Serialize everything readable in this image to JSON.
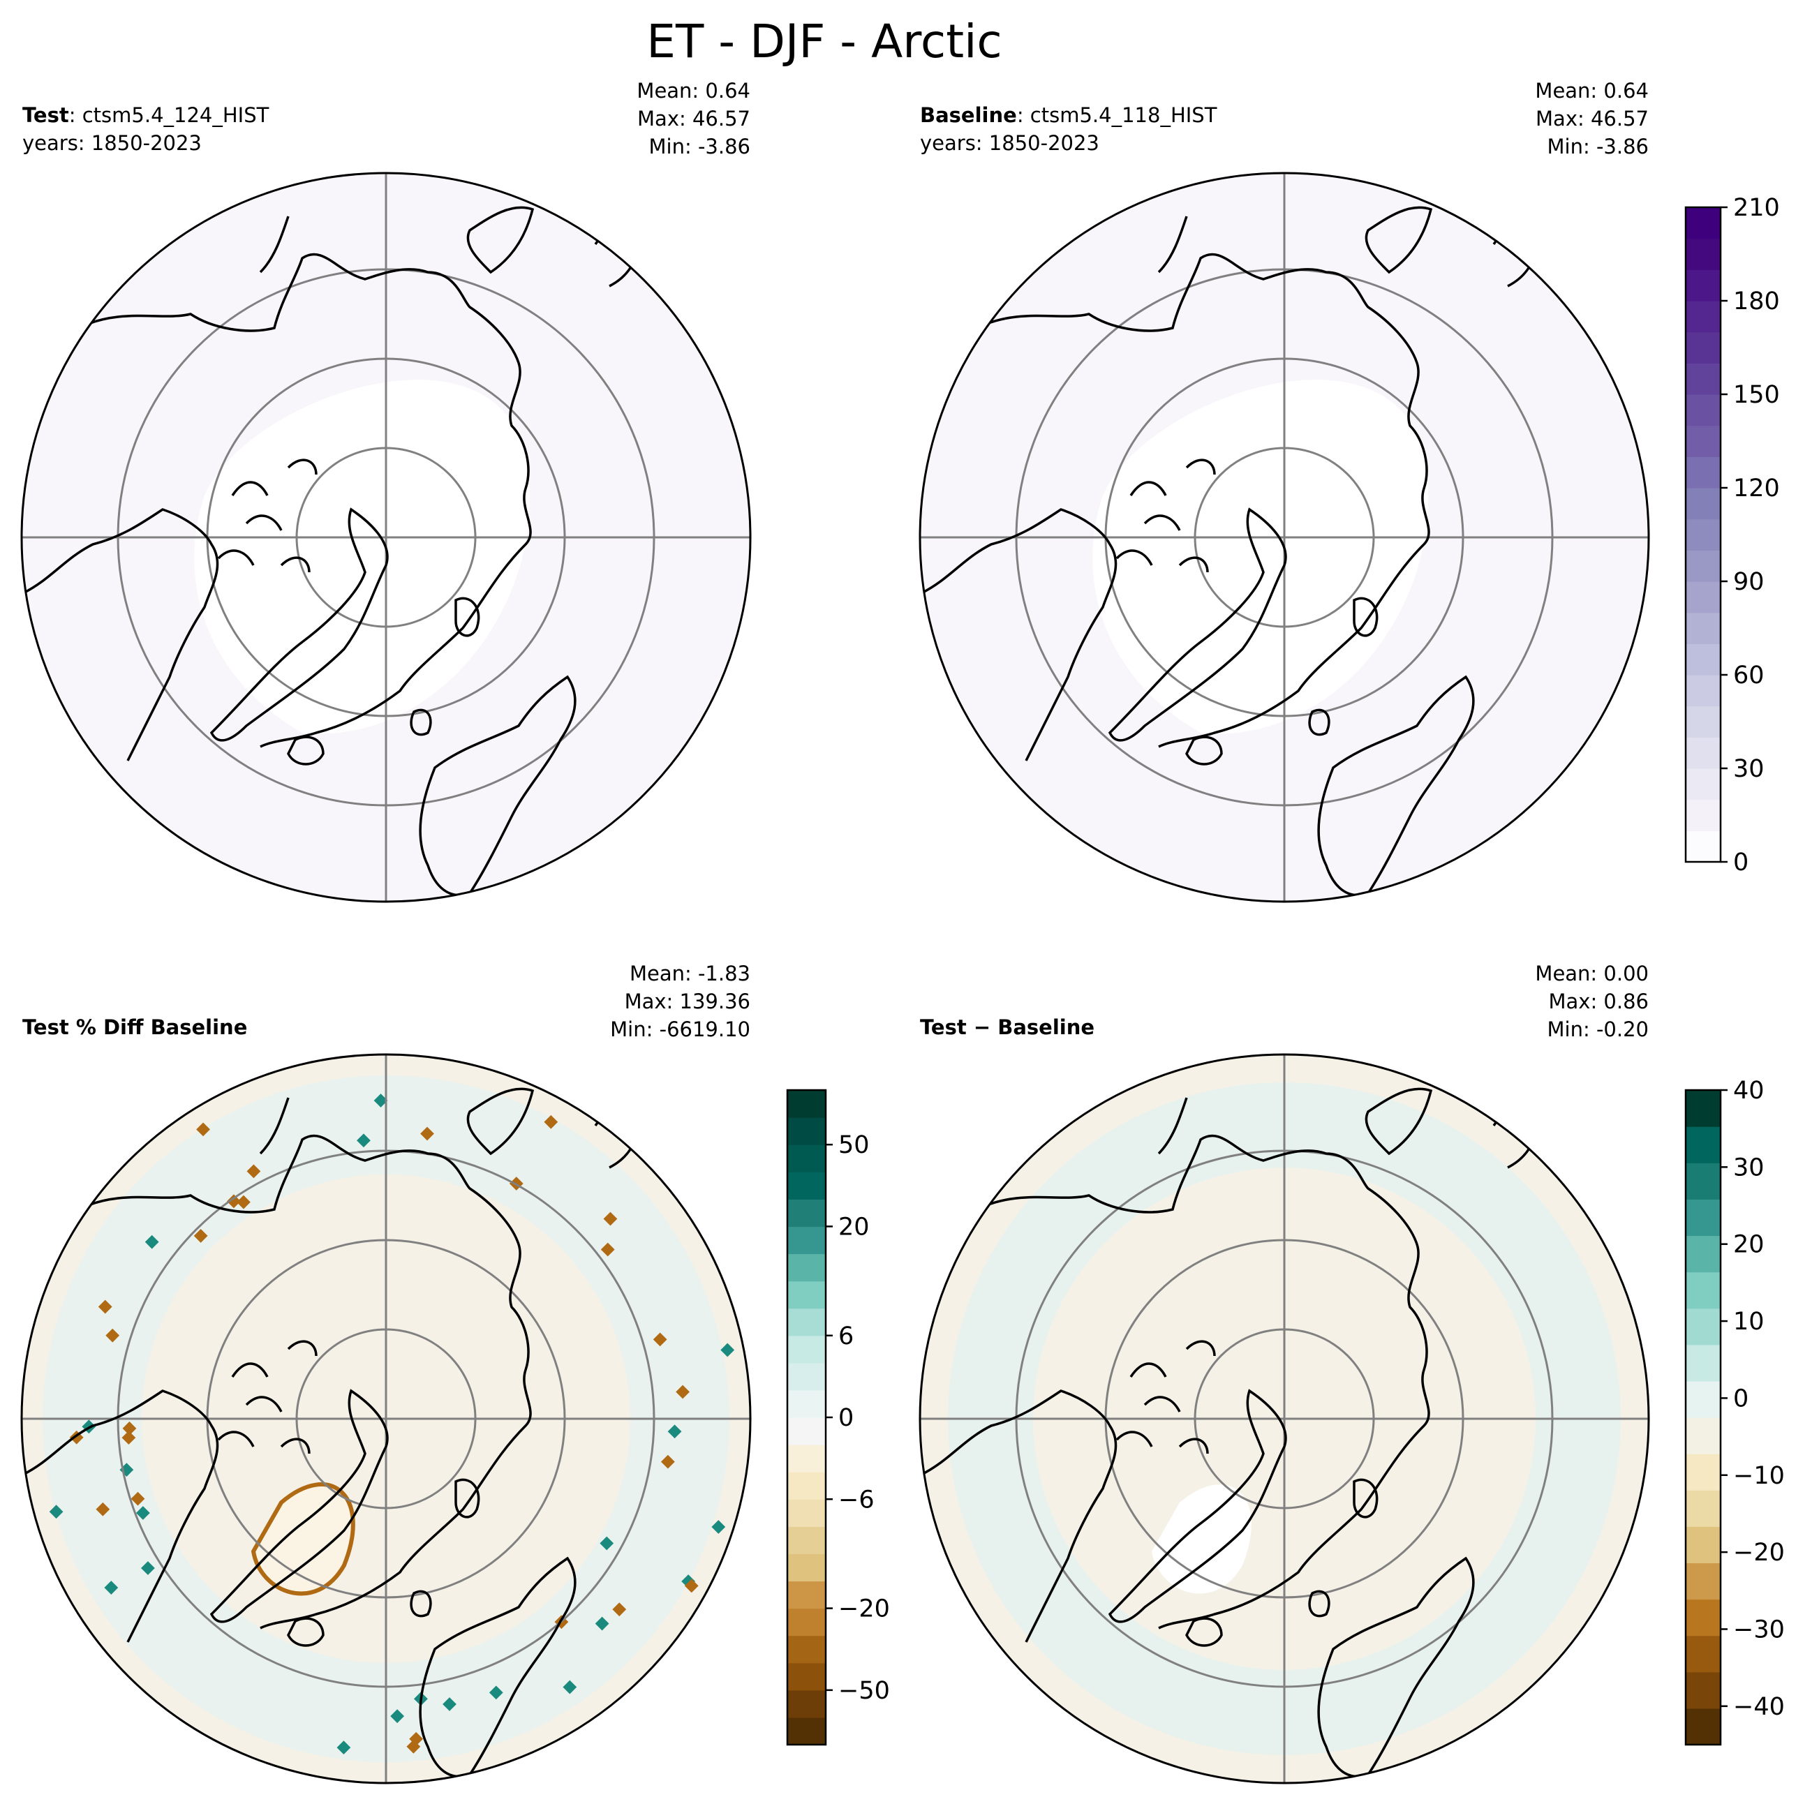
{
  "title": "ET - DJF - Arctic",
  "panels": [
    {
      "id": "test",
      "label_bold": "Test",
      "label_rest": ": ctsm5.4_124_HIST",
      "years": "years: 1850-2023",
      "stats": {
        "mean": "Mean:  0.64",
        "max": "Max: 46.57",
        "min": "Min: -3.86"
      },
      "fill": "#f8f6fb",
      "has_colorbar": false
    },
    {
      "id": "baseline",
      "label_bold": "Baseline",
      "label_rest": ": ctsm5.4_118_HIST",
      "years": "years: 1850-2023",
      "stats": {
        "mean": "Mean:  0.64",
        "max": "Max: 46.57",
        "min": "Min: -3.86"
      },
      "fill": "#f8f6fb",
      "has_colorbar": true
    },
    {
      "id": "pct-diff",
      "label_bold": "Test % Diff Baseline",
      "label_rest": "",
      "years": "",
      "stats": {
        "mean": "Mean: -1.83",
        "max": "Max: 139.36",
        "min": "Min: -6619.10"
      },
      "fill": "#f5f1e6",
      "has_colorbar": true
    },
    {
      "id": "abs-diff",
      "label_bold": "Test − Baseline",
      "label_rest": "",
      "years": "",
      "stats": {
        "mean": "Mean:  0.00",
        "max": "Max:  0.86",
        "min": "Min: -0.20"
      },
      "fill": "#f5f1e6",
      "has_colorbar": true
    }
  ],
  "colorbars": [
    {
      "panel": "baseline",
      "levels": [
        0,
        10,
        20,
        30,
        40,
        50,
        60,
        70,
        80,
        90,
        100,
        110,
        120,
        130,
        140,
        150,
        160,
        170,
        180,
        190,
        200,
        210
      ],
      "colors": [
        "#fcfbfd",
        "#f4f2f8",
        "#ebe9f3",
        "#e1e0ee",
        "#d6d6e9",
        "#cbcbe3",
        "#bebfdc",
        "#b2b2d5",
        "#a6a4cc",
        "#9a98c5",
        "#8e8bbe",
        "#8380b8",
        "#7a6fb0",
        "#725ea8",
        "#6a51a2",
        "#62439b",
        "#5a3494",
        "#53278f",
        "#4c1788",
        "#45097f",
        "#3f007d"
      ],
      "tick_values": [
        0,
        30,
        60,
        90,
        120,
        150,
        180,
        210
      ],
      "tick_labels": [
        "0",
        "30",
        "60",
        "90",
        "120",
        "150",
        "180",
        "210"
      ]
    },
    {
      "panel": "pct-diff",
      "levels": [
        "<−60",
        "−60",
        "−50",
        "−40",
        "−30",
        "−20",
        "−15",
        "−10",
        "−8",
        "−6",
        "−4",
        "−2",
        "0",
        "2",
        "4",
        "6",
        "8",
        "10",
        "15",
        "20",
        "30",
        "40",
        "50",
        "60",
        ">60"
      ],
      "colors": [
        "#543005",
        "#6d3e08",
        "#8c510a",
        "#a46514",
        "#bf812d",
        "#cc9646",
        "#dfc27d",
        "#e6cf94",
        "#f0dfb2",
        "#f6e8c3",
        "#f9f0d9",
        "#f5f5f5",
        "#eaf5f3",
        "#d7eeec",
        "#c7eae5",
        "#a8ddd5",
        "#80cdc1",
        "#5ab4a8",
        "#35978f",
        "#208077",
        "#01665e",
        "#005a52",
        "#004b43",
        "#003c30"
      ],
      "tick_values": [
        -50,
        -20,
        -6,
        0,
        6,
        20,
        50
      ],
      "tick_labels": [
        "−50",
        "−20",
        "−6",
        "0",
        "6",
        "20",
        "50"
      ]
    },
    {
      "panel": "abs-diff",
      "levels": [
        -45,
        -40,
        -35,
        -30,
        -25,
        -20,
        -15,
        -10,
        -5,
        0,
        5,
        10,
        15,
        20,
        25,
        30,
        35,
        40
      ],
      "colors": [
        "#543005",
        "#7a4509",
        "#985a0f",
        "#b8771f",
        "#cd9a4c",
        "#dfc27d",
        "#ebd9a6",
        "#f6e8c3",
        "#f3f0e4",
        "#e6f3f1",
        "#c7eae5",
        "#a0dad0",
        "#80cdc1",
        "#5ab4a8",
        "#35978f",
        "#1a7d74",
        "#01665e",
        "#003c30"
      ],
      "tick_values": [
        -40,
        -30,
        -20,
        -10,
        0,
        10,
        20,
        30,
        40
      ],
      "tick_labels": [
        "−40",
        "−30",
        "−20",
        "−10",
        "0",
        "10",
        "20",
        "30",
        "40"
      ]
    }
  ],
  "colors": {
    "graticule": "#808080",
    "coast": "#000000",
    "map_bg": "#ffffff",
    "teal": "#1b8a7e",
    "brown": "#b06a14",
    "light_teal": "#e6f2f0"
  }
}
